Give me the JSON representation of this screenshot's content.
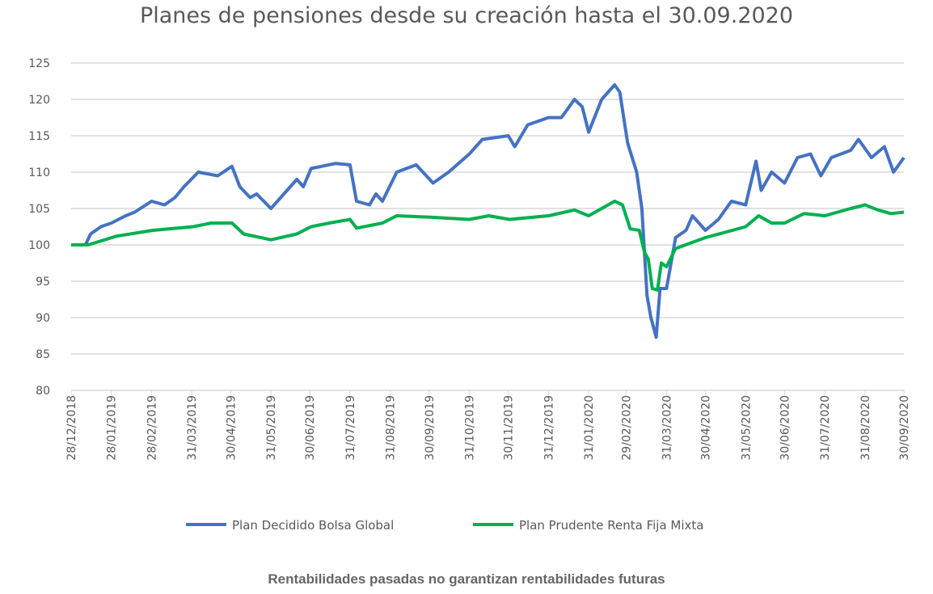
{
  "chart_data": {
    "type": "line",
    "title": "Planes de pensiones desde su creación hasta el 30.09.2020",
    "xlabel": "",
    "ylabel": "",
    "ylim": [
      80,
      125
    ],
    "yticks": [
      "80",
      "85",
      "90",
      "95",
      "100",
      "105",
      "110",
      "115",
      "120",
      "125"
    ],
    "xlim": [
      "2018-12-28",
      "2020-09-30"
    ],
    "xticks": [
      {
        "date": "2018-12-28",
        "label": "28/12/2018"
      },
      {
        "date": "2019-01-28",
        "label": "28/01/2019"
      },
      {
        "date": "2019-02-28",
        "label": "28/02/2019"
      },
      {
        "date": "2019-03-31",
        "label": "31/03/2019"
      },
      {
        "date": "2019-04-30",
        "label": "30/04/2019"
      },
      {
        "date": "2019-05-31",
        "label": "31/05/2019"
      },
      {
        "date": "2019-06-30",
        "label": "30/06/2019"
      },
      {
        "date": "2019-07-31",
        "label": "31/07/2019"
      },
      {
        "date": "2019-08-31",
        "label": "31/08/2019"
      },
      {
        "date": "2019-09-30",
        "label": "30/09/2019"
      },
      {
        "date": "2019-10-31",
        "label": "31/10/2019"
      },
      {
        "date": "2019-11-30",
        "label": "30/11/2019"
      },
      {
        "date": "2019-12-31",
        "label": "31/12/2019"
      },
      {
        "date": "2020-01-31",
        "label": "31/01/2020"
      },
      {
        "date": "2020-02-29",
        "label": "29/02/2020"
      },
      {
        "date": "2020-03-31",
        "label": "31/03/2020"
      },
      {
        "date": "2020-04-30",
        "label": "30/04/2020"
      },
      {
        "date": "2020-05-31",
        "label": "31/05/2020"
      },
      {
        "date": "2020-06-30",
        "label": "30/06/2020"
      },
      {
        "date": "2020-07-31",
        "label": "31/07/2020"
      },
      {
        "date": "2020-08-31",
        "label": "31/08/2020"
      },
      {
        "date": "2020-09-30",
        "label": "30/09/2020"
      }
    ],
    "grid": true,
    "legend_position": "bottom",
    "series": [
      {
        "name": "Plan Decidido Bolsa Global",
        "color": "#4472C4",
        "points": [
          [
            "2018-12-28",
            100
          ],
          [
            "2019-01-08",
            100
          ],
          [
            "2019-01-12",
            101.5
          ],
          [
            "2019-01-20",
            102.5
          ],
          [
            "2019-01-28",
            103
          ],
          [
            "2019-02-08",
            104
          ],
          [
            "2019-02-15",
            104.5
          ],
          [
            "2019-02-28",
            106
          ],
          [
            "2019-03-10",
            105.5
          ],
          [
            "2019-03-18",
            106.5
          ],
          [
            "2019-03-25",
            108
          ],
          [
            "2019-04-05",
            110
          ],
          [
            "2019-04-20",
            109.5
          ],
          [
            "2019-05-01",
            110.8
          ],
          [
            "2019-05-07",
            108
          ],
          [
            "2019-05-15",
            106.5
          ],
          [
            "2019-05-20",
            107
          ],
          [
            "2019-05-31",
            105
          ],
          [
            "2019-06-10",
            107
          ],
          [
            "2019-06-20",
            109
          ],
          [
            "2019-06-25",
            108
          ],
          [
            "2019-07-01",
            110.5
          ],
          [
            "2019-07-20",
            111.2
          ],
          [
            "2019-07-31",
            111
          ],
          [
            "2019-08-05",
            106
          ],
          [
            "2019-08-15",
            105.5
          ],
          [
            "2019-08-20",
            107
          ],
          [
            "2019-08-25",
            106
          ],
          [
            "2019-09-05",
            110
          ],
          [
            "2019-09-20",
            111
          ],
          [
            "2019-10-03",
            108.5
          ],
          [
            "2019-10-15",
            110
          ],
          [
            "2019-10-31",
            112.5
          ],
          [
            "2019-11-10",
            114.5
          ],
          [
            "2019-11-30",
            115
          ],
          [
            "2019-12-05",
            113.5
          ],
          [
            "2019-12-15",
            116.5
          ],
          [
            "2019-12-31",
            117.5
          ],
          [
            "2020-01-10",
            117.5
          ],
          [
            "2020-01-20",
            120
          ],
          [
            "2020-01-26",
            119
          ],
          [
            "2020-01-31",
            115.5
          ],
          [
            "2020-02-10",
            120
          ],
          [
            "2020-02-20",
            122
          ],
          [
            "2020-02-24",
            121
          ],
          [
            "2020-03-01",
            114
          ],
          [
            "2020-03-08",
            110
          ],
          [
            "2020-03-12",
            105
          ],
          [
            "2020-03-16",
            93
          ],
          [
            "2020-03-19",
            90
          ],
          [
            "2020-03-23",
            87.3
          ],
          [
            "2020-03-26",
            94
          ],
          [
            "2020-03-31",
            94
          ],
          [
            "2020-04-07",
            101
          ],
          [
            "2020-04-15",
            102
          ],
          [
            "2020-04-20",
            104
          ],
          [
            "2020-04-30",
            102
          ],
          [
            "2020-05-10",
            103.5
          ],
          [
            "2020-05-20",
            106
          ],
          [
            "2020-05-31",
            105.5
          ],
          [
            "2020-06-08",
            111.5
          ],
          [
            "2020-06-12",
            107.5
          ],
          [
            "2020-06-20",
            110
          ],
          [
            "2020-06-30",
            108.5
          ],
          [
            "2020-07-10",
            112
          ],
          [
            "2020-07-20",
            112.5
          ],
          [
            "2020-07-28",
            109.5
          ],
          [
            "2020-08-05",
            112
          ],
          [
            "2020-08-20",
            113
          ],
          [
            "2020-08-26",
            114.5
          ],
          [
            "2020-09-05",
            112
          ],
          [
            "2020-09-15",
            113.5
          ],
          [
            "2020-09-22",
            110
          ],
          [
            "2020-09-30",
            112
          ]
        ]
      },
      {
        "name": "Plan Prudente Renta Fija Mixta",
        "color": "#00B050",
        "points": [
          [
            "2018-12-28",
            100
          ],
          [
            "2019-01-10",
            100
          ],
          [
            "2019-02-01",
            101.2
          ],
          [
            "2019-03-01",
            102
          ],
          [
            "2019-04-01",
            102.5
          ],
          [
            "2019-04-15",
            103
          ],
          [
            "2019-05-01",
            103
          ],
          [
            "2019-05-10",
            101.5
          ],
          [
            "2019-05-31",
            100.7
          ],
          [
            "2019-06-20",
            101.5
          ],
          [
            "2019-07-01",
            102.5
          ],
          [
            "2019-07-15",
            103
          ],
          [
            "2019-07-31",
            103.5
          ],
          [
            "2019-08-05",
            102.3
          ],
          [
            "2019-08-25",
            103
          ],
          [
            "2019-09-05",
            104
          ],
          [
            "2019-10-01",
            103.8
          ],
          [
            "2019-10-31",
            103.5
          ],
          [
            "2019-11-15",
            104
          ],
          [
            "2019-12-01",
            103.5
          ],
          [
            "2019-12-31",
            104
          ],
          [
            "2020-01-20",
            104.8
          ],
          [
            "2020-01-31",
            104
          ],
          [
            "2020-02-10",
            105
          ],
          [
            "2020-02-20",
            106
          ],
          [
            "2020-02-26",
            105.5
          ],
          [
            "2020-03-03",
            102.2
          ],
          [
            "2020-03-10",
            102
          ],
          [
            "2020-03-14",
            99
          ],
          [
            "2020-03-17",
            98
          ],
          [
            "2020-03-20",
            94
          ],
          [
            "2020-03-24",
            93.8
          ],
          [
            "2020-03-27",
            97.5
          ],
          [
            "2020-03-31",
            97
          ],
          [
            "2020-04-07",
            99.5
          ],
          [
            "2020-04-30",
            101
          ],
          [
            "2020-05-31",
            102.5
          ],
          [
            "2020-06-10",
            104
          ],
          [
            "2020-06-20",
            103
          ],
          [
            "2020-06-30",
            103
          ],
          [
            "2020-07-15",
            104.3
          ],
          [
            "2020-07-31",
            104
          ],
          [
            "2020-08-20",
            105
          ],
          [
            "2020-08-31",
            105.5
          ],
          [
            "2020-09-10",
            104.8
          ],
          [
            "2020-09-20",
            104.3
          ],
          [
            "2020-09-30",
            104.5
          ]
        ]
      }
    ]
  },
  "footer": "Rentabilidades pasadas no garantizan rentabilidades futuras"
}
